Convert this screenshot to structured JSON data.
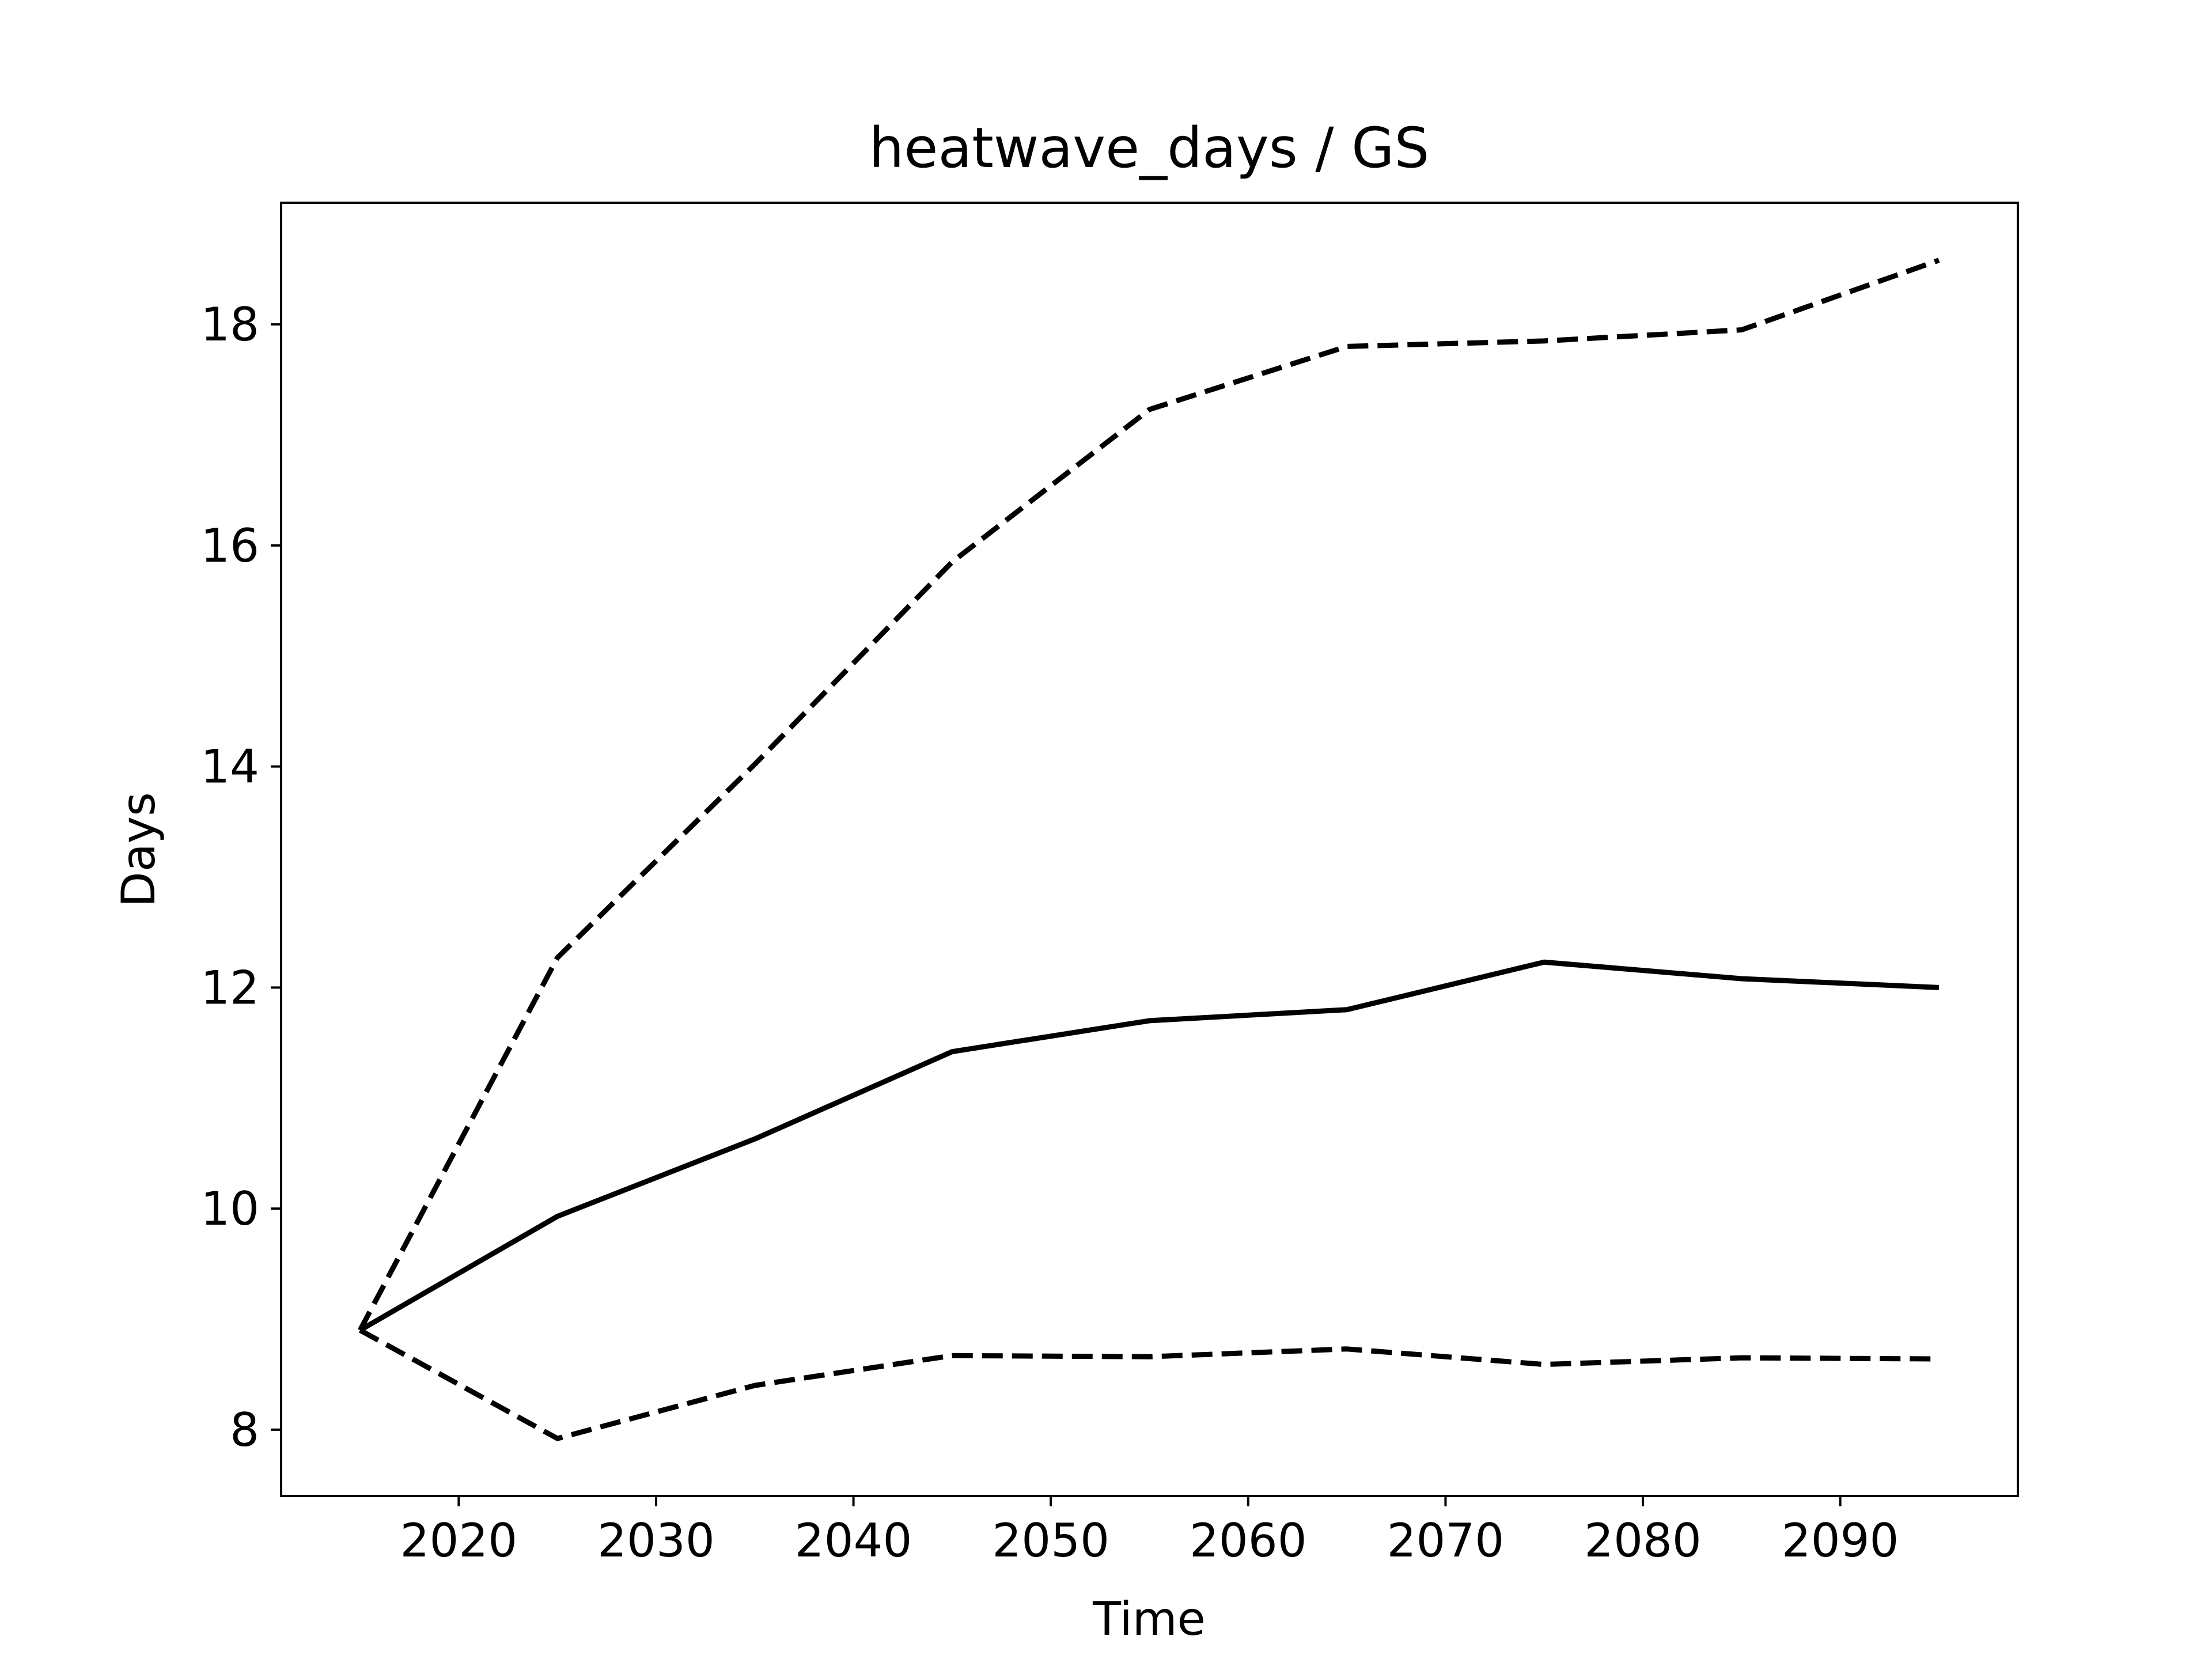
{
  "chart_data": {
    "type": "line",
    "title": "heatwave_days / GS",
    "xlabel": "Time",
    "ylabel": "Days",
    "x": [
      2015,
      2025,
      2035,
      2045,
      2055,
      2065,
      2075,
      2085,
      2095
    ],
    "xlim": [
      2011,
      2099
    ],
    "ylim": [
      7.4,
      19.1
    ],
    "xticks": [
      2020,
      2030,
      2040,
      2050,
      2060,
      2070,
      2080,
      2090
    ],
    "yticks": [
      8,
      10,
      12,
      14,
      16,
      18
    ],
    "grid": false,
    "series": [
      {
        "style": "solid",
        "color": "#000000",
        "values": [
          8.9,
          9.93,
          10.63,
          11.42,
          11.7,
          11.8,
          12.23,
          12.08,
          12.0
        ]
      },
      {
        "style": "dashed",
        "color": "#000000",
        "values": [
          8.9,
          12.27,
          14.02,
          15.85,
          17.23,
          17.8,
          17.85,
          17.95,
          18.58
        ]
      },
      {
        "style": "dashed",
        "color": "#000000",
        "values": [
          8.9,
          7.92,
          8.4,
          8.67,
          8.66,
          8.73,
          8.59,
          8.65,
          8.64
        ]
      }
    ]
  }
}
